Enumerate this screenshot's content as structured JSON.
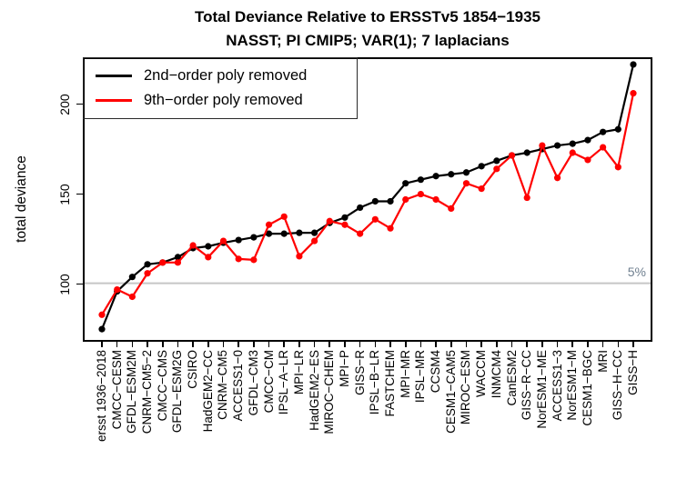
{
  "title": {
    "line1": "Total Deviance Relative to ERSSTv5 1854−1935",
    "line2": "NASST; PI CMIP5; VAR(1); 7 laplacians"
  },
  "y_axis": {
    "label": "total deviance",
    "ticks": [
      100,
      150,
      200
    ]
  },
  "threshold": {
    "label": "5%",
    "value": 100.5
  },
  "colors": {
    "series_black": "#000000",
    "series_red": "#ff0000",
    "threshold_line": "#c6c6c6",
    "threshold_text": "#708090",
    "axis": "#000000"
  },
  "legend": {
    "items": [
      {
        "label": "2nd−order poly removed",
        "color": "#000000"
      },
      {
        "label": "9th−order poly removed",
        "color": "#ff0000"
      }
    ]
  },
  "chart_data": {
    "type": "line",
    "title": "Total Deviance Relative to ERSSTv5 1854−1935",
    "subtitle": "NASST; PI CMIP5; VAR(1); 7 laplacians",
    "xlabel": "",
    "ylabel": "total deviance",
    "ylim": [
      68,
      226
    ],
    "yticks": [
      100,
      150,
      200
    ],
    "grid": false,
    "legend_position": "topleft",
    "threshold_line": {
      "value": 100.5,
      "label": "5%"
    },
    "categories": [
      "ersst 1936−2018",
      "CMCC−CESM",
      "GFDL−ESM2M",
      "CNRM−CM5−2",
      "CMCC−CMS",
      "GFDL−ESM2G",
      "CSIRO",
      "HadGEM2−CC",
      "CNRM−CM5",
      "ACCESS1−0",
      "GFDL−CM3",
      "CMCC−CM",
      "IPSL−A−LR",
      "MPI−LR",
      "HadGEM2−ES",
      "MIROC−CHEM",
      "MPI−P",
      "GISS−R",
      "IPSL−B−LR",
      "FASTCHEM",
      "MPI−MR",
      "IPSL−MR",
      "CCSM4",
      "CESM1−CAM5",
      "MIROC−ESM",
      "WACCM",
      "INMCM4",
      "CanESM2",
      "GISS−R−CC",
      "NorESM1−ME",
      "ACCESS1−3",
      "NorESM1−M",
      "CESM1−BGC",
      "MRI",
      "GISS−H−CC",
      "GISS−H"
    ],
    "series": [
      {
        "name": "2nd−order poly removed",
        "color": "#000000",
        "marker": "filled-circle",
        "values": [
          75,
          96,
          104,
          111,
          112,
          115,
          120,
          121,
          123,
          124.5,
          126,
          128,
          128,
          128.5,
          128.5,
          134,
          137,
          142.5,
          146,
          146,
          156,
          158,
          160,
          161,
          162,
          165.5,
          168.5,
          171.5,
          173,
          175,
          177,
          178,
          180,
          184.5,
          186,
          222
        ]
      },
      {
        "name": "9th−order poly removed",
        "color": "#ff0000",
        "marker": "filled-circle",
        "values": [
          83,
          97,
          93,
          106,
          112,
          112,
          121.5,
          115,
          124,
          114,
          113.5,
          133,
          137.5,
          115.5,
          124,
          135,
          133,
          128,
          136,
          131,
          147,
          150,
          147,
          142,
          156,
          153,
          164,
          171.5,
          148,
          177,
          159,
          173,
          169,
          176,
          165,
          206
        ]
      }
    ]
  }
}
